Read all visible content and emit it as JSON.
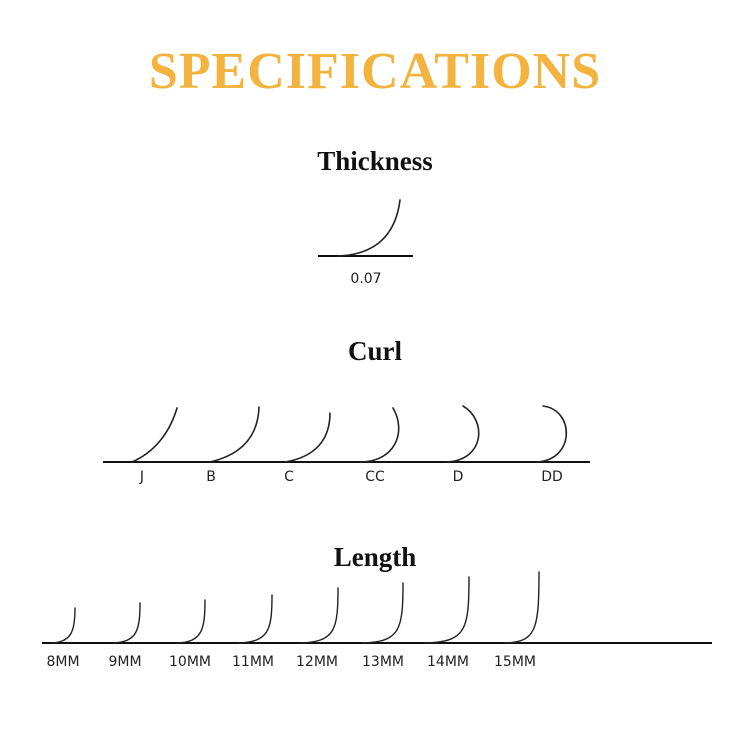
{
  "title": "SPECIFICATIONS",
  "colors": {
    "title": "#f2b33f",
    "line": "#111111"
  },
  "thickness": {
    "heading": "Thickness",
    "labels": [
      "0.07"
    ]
  },
  "curl": {
    "heading": "Curl",
    "labels": [
      "J",
      "B",
      "C",
      "CC",
      "D",
      "DD"
    ]
  },
  "length": {
    "heading": "Length",
    "labels": [
      "8MM",
      "9MM",
      "10MM",
      "11MM",
      "12MM",
      "13MM",
      "14MM",
      "15MM"
    ]
  }
}
